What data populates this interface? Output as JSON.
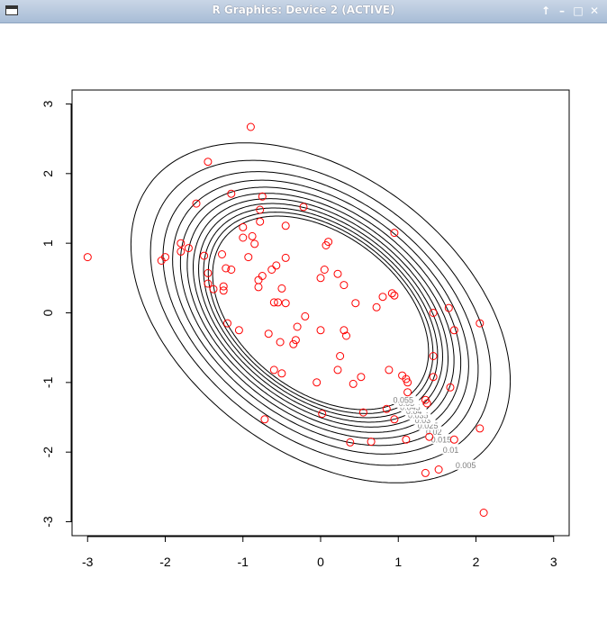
{
  "window": {
    "title": "R Graphics: Device 2 (ACTIVE)",
    "controls": [
      "↑",
      "–",
      "□",
      "✕"
    ]
  },
  "chart_data": {
    "type": "scatter",
    "title": "",
    "xlabel": "",
    "ylabel": "",
    "xlim": [
      -3.2,
      3.2
    ],
    "ylim": [
      -3.2,
      3.2
    ],
    "xticks": [
      -3,
      -2,
      -1,
      0,
      1,
      2,
      3
    ],
    "yticks": [
      -3,
      -2,
      -1,
      0,
      1,
      2,
      3
    ],
    "grid": false,
    "contour": {
      "type": "bivariate-normal-density",
      "correlation": -0.4,
      "levels": [
        0.005,
        0.01,
        0.015,
        0.02,
        0.025,
        0.03,
        0.035,
        0.04,
        0.045,
        0.05,
        0.055
      ],
      "labels": [
        "0.005",
        "0.01",
        "0.015",
        "0.02",
        "0.025",
        "0.03",
        "0.035",
        "0.04",
        "0.045",
        "0.05",
        "0.055"
      ],
      "line_color": "#000000",
      "label_color": "#7f7f7f"
    },
    "points_color": "#ff0000",
    "points": [
      [
        -3.0,
        0.8
      ],
      [
        -2.0,
        0.8
      ],
      [
        -2.05,
        0.75
      ],
      [
        -1.8,
        1.0
      ],
      [
        -1.8,
        0.88
      ],
      [
        -1.7,
        0.93
      ],
      [
        -1.6,
        1.57
      ],
      [
        -1.45,
        2.17
      ],
      [
        -1.5,
        0.82
      ],
      [
        -1.45,
        0.57
      ],
      [
        -1.45,
        0.42
      ],
      [
        -1.38,
        0.34
      ],
      [
        -1.27,
        0.84
      ],
      [
        -1.25,
        0.38
      ],
      [
        -1.25,
        0.32
      ],
      [
        -1.22,
        0.64
      ],
      [
        -1.15,
        1.71
      ],
      [
        -1.15,
        0.62
      ],
      [
        -1.2,
        -0.15
      ],
      [
        -1.05,
        -0.25
      ],
      [
        -1.0,
        1.23
      ],
      [
        -1.0,
        1.08
      ],
      [
        -0.93,
        0.8
      ],
      [
        -0.9,
        2.67
      ],
      [
        -0.88,
        1.1
      ],
      [
        -0.85,
        0.99
      ],
      [
        -0.8,
        0.47
      ],
      [
        -0.8,
        0.37
      ],
      [
        -0.78,
        1.31
      ],
      [
        -0.78,
        1.48
      ],
      [
        -0.75,
        1.67
      ],
      [
        -0.75,
        0.53
      ],
      [
        -0.72,
        -1.53
      ],
      [
        -0.67,
        -0.3
      ],
      [
        -0.63,
        0.62
      ],
      [
        -0.6,
        0.15
      ],
      [
        -0.6,
        -0.82
      ],
      [
        -0.57,
        0.68
      ],
      [
        -0.55,
        0.15
      ],
      [
        -0.52,
        -0.42
      ],
      [
        -0.5,
        0.35
      ],
      [
        -0.5,
        -0.87
      ],
      [
        -0.45,
        0.14
      ],
      [
        -0.45,
        0.79
      ],
      [
        -0.45,
        1.25
      ],
      [
        -0.35,
        -0.45
      ],
      [
        -0.32,
        -0.39
      ],
      [
        -0.3,
        -0.2
      ],
      [
        -0.22,
        1.52
      ],
      [
        -0.2,
        -0.05
      ],
      [
        -0.05,
        -1.0
      ],
      [
        0.0,
        0.5
      ],
      [
        0.0,
        -0.25
      ],
      [
        0.02,
        -1.45
      ],
      [
        0.05,
        0.62
      ],
      [
        0.07,
        0.97
      ],
      [
        0.1,
        1.02
      ],
      [
        0.22,
        -0.82
      ],
      [
        0.22,
        0.56
      ],
      [
        0.25,
        -0.62
      ],
      [
        0.3,
        0.4
      ],
      [
        0.3,
        -0.25
      ],
      [
        0.33,
        -0.33
      ],
      [
        0.38,
        -1.86
      ],
      [
        0.42,
        -1.02
      ],
      [
        0.45,
        0.14
      ],
      [
        0.52,
        -0.92
      ],
      [
        0.55,
        -1.43
      ],
      [
        0.65,
        -1.85
      ],
      [
        0.72,
        0.08
      ],
      [
        0.8,
        0.23
      ],
      [
        0.85,
        -1.38
      ],
      [
        0.88,
        -0.82
      ],
      [
        0.92,
        0.28
      ],
      [
        0.95,
        0.25
      ],
      [
        0.95,
        -1.53
      ],
      [
        0.95,
        1.15
      ],
      [
        1.05,
        -0.9
      ],
      [
        1.1,
        -0.95
      ],
      [
        1.12,
        -1.0
      ],
      [
        1.1,
        -1.82
      ],
      [
        1.12,
        -1.14
      ],
      [
        1.35,
        -1.25
      ],
      [
        1.37,
        -1.3
      ],
      [
        1.35,
        -2.3
      ],
      [
        1.4,
        -1.78
      ],
      [
        1.45,
        0.0
      ],
      [
        1.45,
        -0.62
      ],
      [
        1.45,
        -0.92
      ],
      [
        1.52,
        -2.25
      ],
      [
        1.65,
        0.07
      ],
      [
        1.67,
        -1.07
      ],
      [
        1.72,
        -0.25
      ],
      [
        1.72,
        -1.82
      ],
      [
        2.05,
        -0.15
      ],
      [
        2.05,
        -1.66
      ],
      [
        2.1,
        -2.87
      ]
    ]
  }
}
